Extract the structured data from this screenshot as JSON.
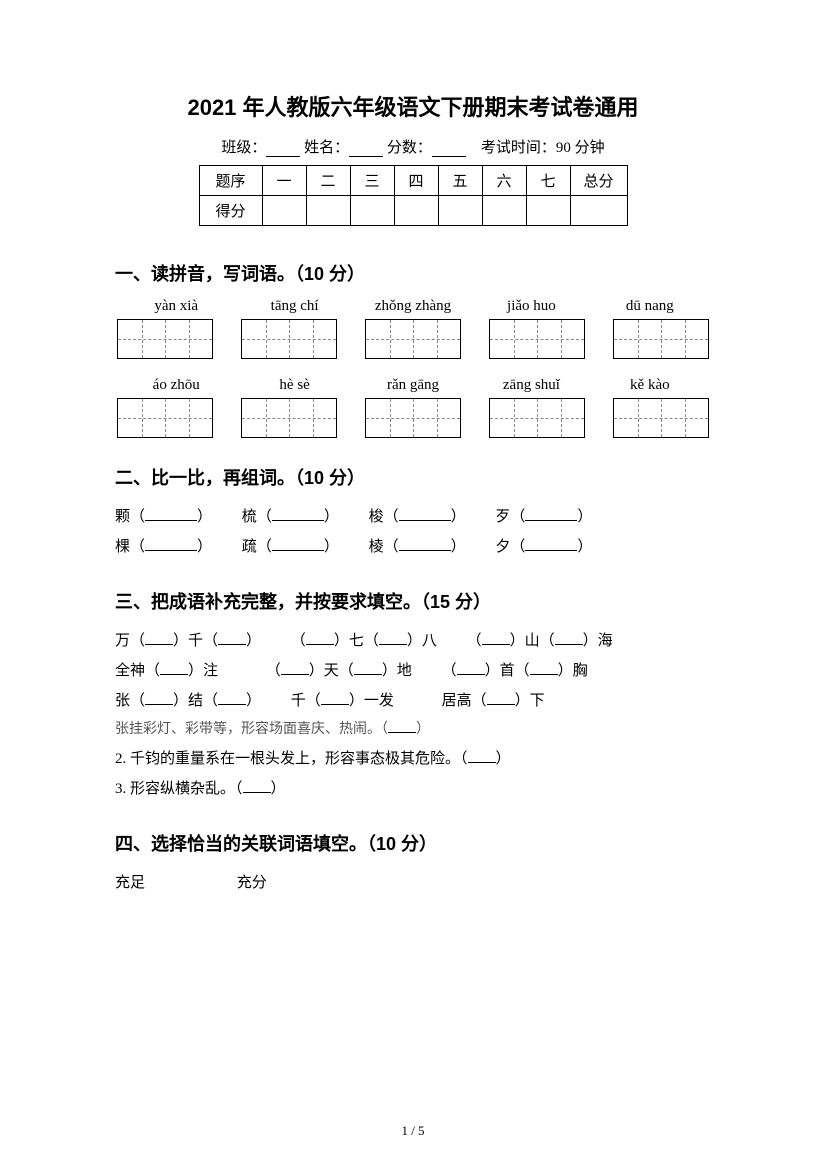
{
  "title": "2021 年人教版六年级语文下册期末考试卷通用",
  "meta": {
    "class_label": "班级：",
    "name_label": "姓名：",
    "score_label": "分数：",
    "time_label": "考试时间：90 分钟"
  },
  "score_table": {
    "row1": [
      "题序",
      "一",
      "二",
      "三",
      "四",
      "五",
      "六",
      "七",
      "总分"
    ],
    "row2_label": "得分"
  },
  "sec1": {
    "head": "一、读拼音，写词语。（10 分）",
    "row1": [
      "yàn xià",
      "tāng chí",
      "zhǒng zhàng",
      "jiǎo huo",
      "dū nang"
    ],
    "row2": [
      "áo zhōu",
      "hè sè",
      "rǎn gāng",
      "zāng shuǐ",
      "kě kào"
    ]
  },
  "sec2": {
    "head": "二、比一比，再组词。（10 分）",
    "pairs": [
      [
        "颗",
        "梳",
        "梭",
        "歹"
      ],
      [
        "棵",
        "疏",
        "棱",
        "夕"
      ]
    ]
  },
  "sec3": {
    "head": "三、把成语补充完整，并按要求填空。（15 分）",
    "lines": [
      [
        "万（",
        "）千（",
        "）",
        "（",
        "）七（",
        "）八",
        "（",
        "）山（",
        "）海"
      ],
      [
        "全神（",
        "）注",
        "（",
        "）天（",
        "）地",
        "（",
        "）首（",
        "）胸"
      ],
      [
        "张（",
        "）结（",
        "）",
        "千（",
        "）一发",
        "居高（",
        "）下"
      ]
    ],
    "hints": [
      "张挂彩灯、彩带等，形容场面喜庆、热闹。（",
      "2. 千钧的重量系在一根头发上，形容事态极其危险。（",
      "3. 形容纵横杂乱。（"
    ],
    "hint_close": "）"
  },
  "sec4": {
    "head": "四、选择恰当的关联词语填空。（10 分）",
    "words": [
      "充足",
      "充分"
    ]
  },
  "footer": "1 / 5"
}
